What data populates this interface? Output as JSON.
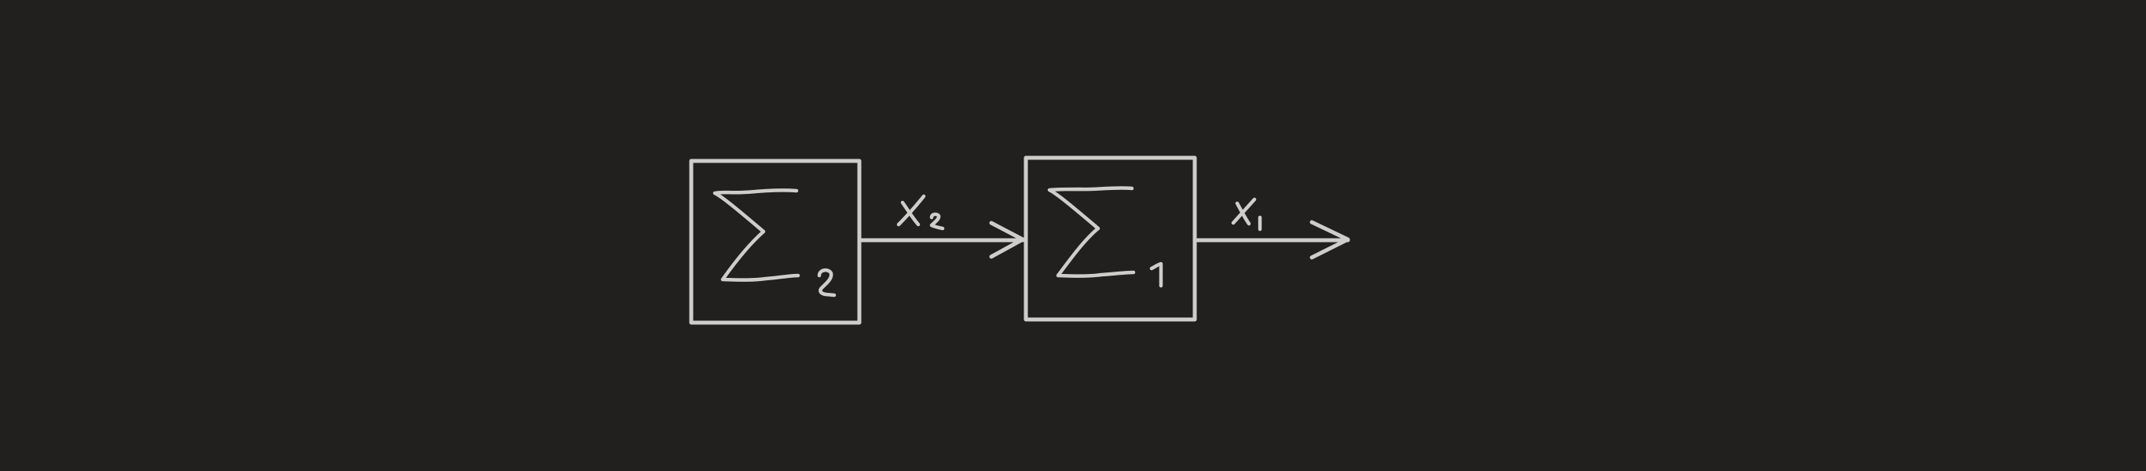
{
  "diagram": {
    "blocks": [
      {
        "id": "sigma-2",
        "symbol": "Σ",
        "subscript": "2"
      },
      {
        "id": "sigma-1",
        "symbol": "Σ",
        "subscript": "1"
      }
    ],
    "signals": [
      {
        "id": "x2",
        "symbol": "x",
        "subscript": "2",
        "from": "sigma-2",
        "to": "sigma-1"
      },
      {
        "id": "x1",
        "symbol": "x",
        "subscript": "1",
        "from": "sigma-1",
        "to": "output"
      }
    ],
    "colors": {
      "background": "#21201e",
      "stroke": "#cfcdca"
    }
  }
}
